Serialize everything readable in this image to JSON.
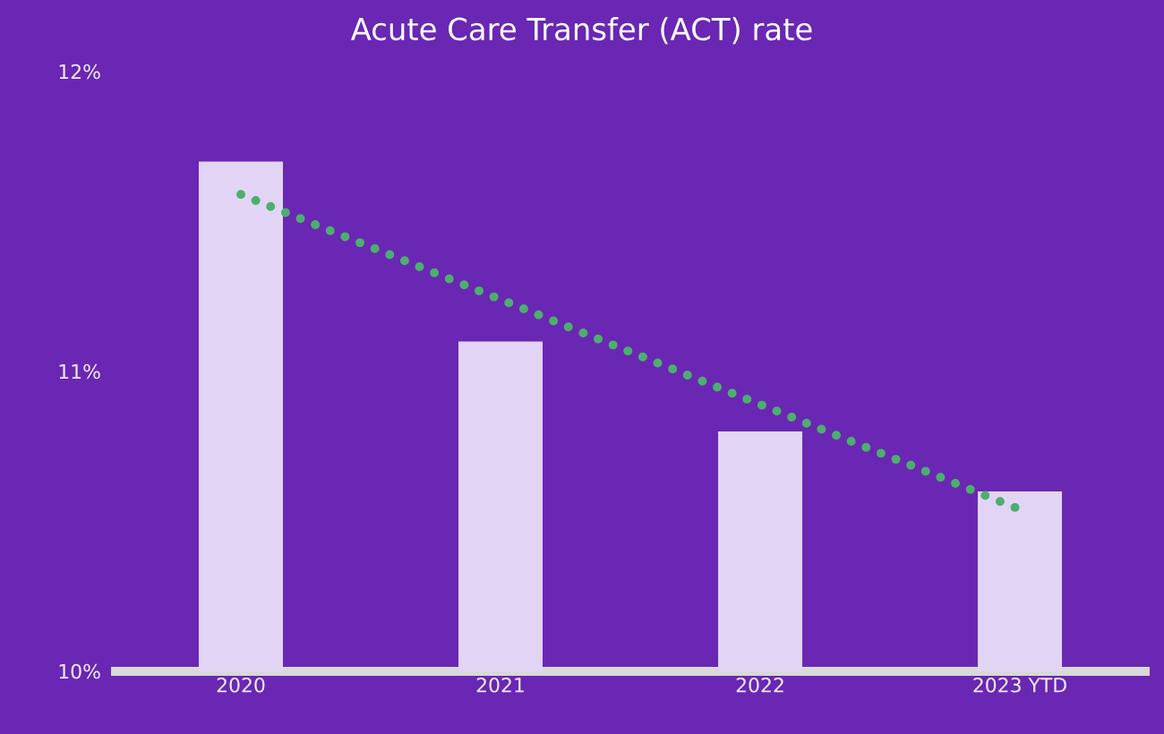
{
  "chart_data": {
    "type": "bar",
    "title": "Acute Care Transfer (ACT) rate",
    "categories": [
      "2020",
      "2021",
      "2022",
      "2023 YTD"
    ],
    "series": [
      {
        "color": "#e2d4f5",
        "values": [
          11.7,
          11.1,
          10.8,
          10.6
        ]
      },
      {
        "type": "line",
        "color": "#4caf6e",
        "values": [
          11.59,
          11.24,
          10.89,
          10.54
        ],
        "line_style": "dotted",
        "marker": "none"
      }
    ],
    "ylim": [
      10,
      12
    ],
    "yticks": [
      {
        "value": 10,
        "label": "10%"
      },
      {
        "value": 11,
        "label": "11%"
      },
      {
        "value": 12,
        "label": "12%"
      }
    ],
    "grid": false
  }
}
